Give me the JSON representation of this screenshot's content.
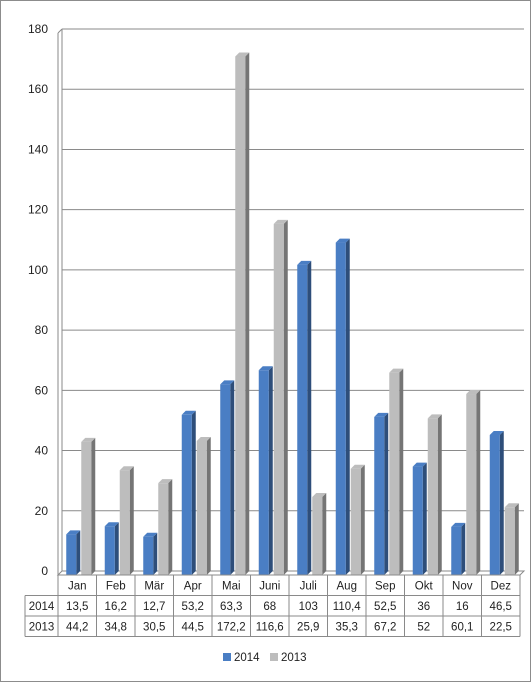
{
  "chart_data": {
    "type": "bar",
    "categories": [
      "Jan",
      "Feb",
      "Mär",
      "Apr",
      "Mai",
      "Juni",
      "Juli",
      "Aug",
      "Sep",
      "Okt",
      "Nov",
      "Dez"
    ],
    "series": [
      {
        "name": "2014",
        "color": "#4a7ec4",
        "values": [
          13.5,
          16.2,
          12.7,
          53.2,
          63.3,
          68,
          103,
          110.4,
          52.5,
          36,
          16,
          46.5
        ],
        "labels": [
          "13,5",
          "16,2",
          "12,7",
          "53,2",
          "63,3",
          "68",
          "103",
          "110,4",
          "52,5",
          "36",
          "16",
          "46,5"
        ]
      },
      {
        "name": "2013",
        "color": "#bdbdbd",
        "values": [
          44.2,
          34.8,
          30.5,
          44.5,
          172.2,
          116.6,
          25.9,
          35.3,
          67.2,
          52,
          60.1,
          22.5
        ],
        "labels": [
          "44,2",
          "34,8",
          "30,5",
          "44,5",
          "172,2",
          "116,6",
          "25,9",
          "35,3",
          "67,2",
          "52",
          "60,1",
          "22,5"
        ]
      }
    ],
    "ylim": [
      0,
      180
    ],
    "yticks": [
      0,
      20,
      40,
      60,
      80,
      100,
      120,
      140,
      160,
      180
    ],
    "grid": true,
    "data_table": true,
    "legend": "bottom",
    "title": "",
    "xlabel": "",
    "ylabel": ""
  }
}
